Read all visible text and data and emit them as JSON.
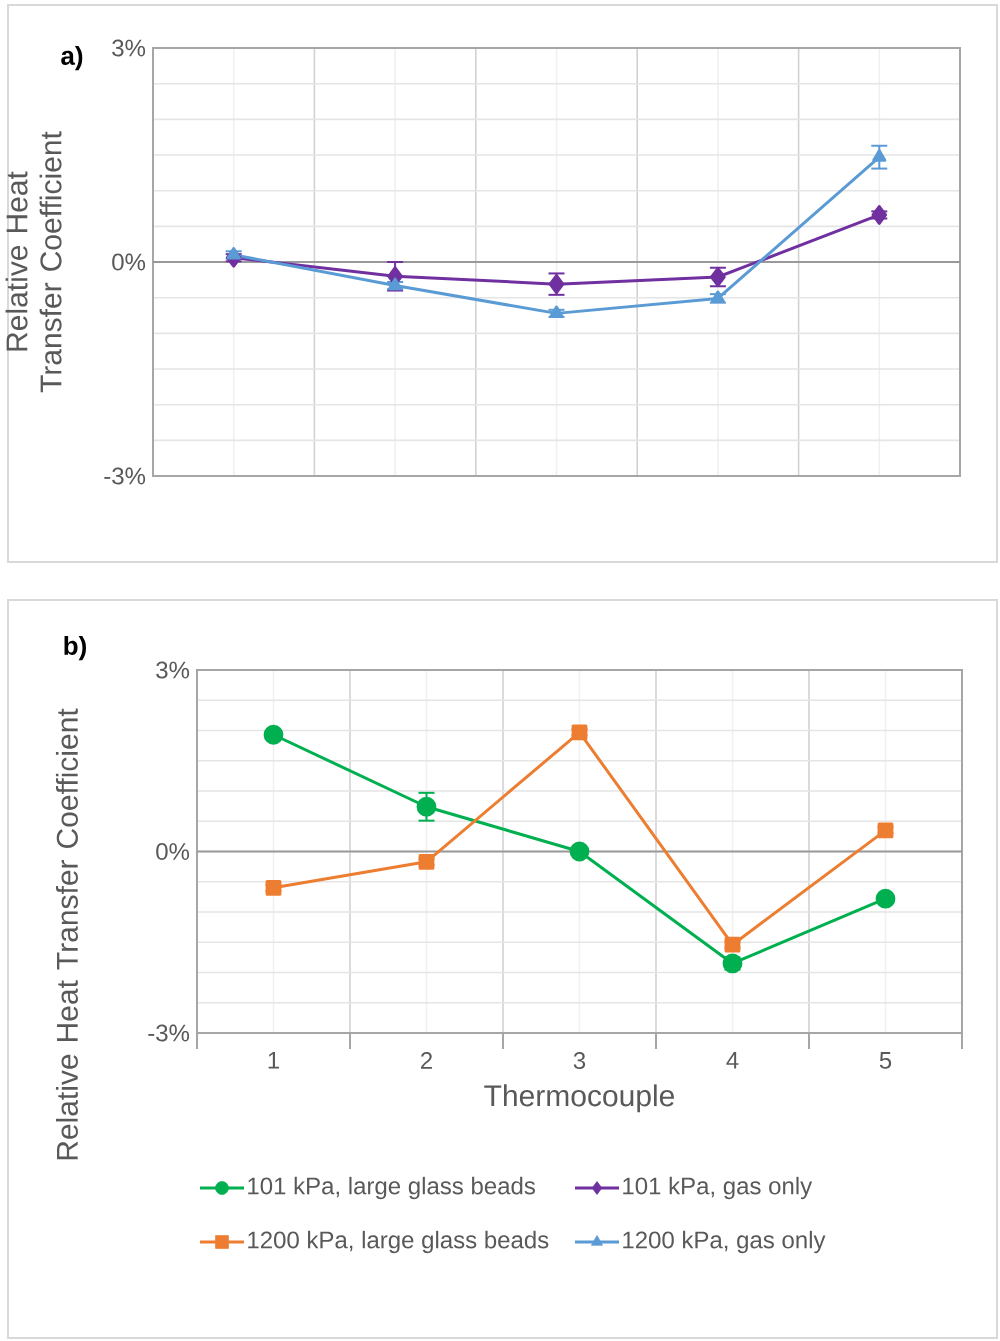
{
  "chart_data": [
    {
      "type": "line",
      "title": "a)",
      "ylabel": "Relative Heat Transfer Coefficient",
      "categories": [
        null,
        null,
        null,
        null,
        null
      ],
      "series": [
        {
          "name": "101 kPa, gas only",
          "color": "#7030a0",
          "marker": "diamond",
          "values": [
            0.06,
            -0.2,
            -0.31,
            -0.21,
            0.66
          ],
          "errors": [
            0.05,
            0.2,
            0.15,
            0.13,
            0.05
          ]
        },
        {
          "name": "1200 kPa, gas only",
          "color": "#5b9bd5",
          "marker": "triangle",
          "values": [
            0.1,
            -0.33,
            -0.72,
            -0.51,
            1.47
          ],
          "errors": [
            0.05,
            0.05,
            0.05,
            0.06,
            0.16
          ]
        }
      ],
      "ylim": [
        -3,
        3
      ],
      "yticks": [
        {
          "value": -3,
          "label": "-3%"
        },
        {
          "value": -2.5,
          "label": null
        },
        {
          "value": -2,
          "label": null
        },
        {
          "value": -1.5,
          "label": null
        },
        {
          "value": -1,
          "label": null
        },
        {
          "value": -0.5,
          "label": null
        },
        {
          "value": 0,
          "label": "0%"
        },
        {
          "value": 0.5,
          "label": null
        },
        {
          "value": 1,
          "label": null
        },
        {
          "value": 1.5,
          "label": null
        },
        {
          "value": 2,
          "label": null
        },
        {
          "value": 2.5,
          "label": null
        },
        {
          "value": 3,
          "label": "3%"
        }
      ],
      "tick_labels": "y",
      "grid": true,
      "legend": "bottom",
      "line_style": "solid"
    },
    {
      "type": "line",
      "title": "b)",
      "xlabel": "Thermocouple",
      "ylabel": "Relative Heat Transfer Coefficient",
      "categories": [
        "1",
        "2",
        "3",
        "4",
        "5"
      ],
      "series": [
        {
          "name": "101 kPa, large glass beads",
          "color": "#00b050",
          "marker": "circle",
          "values": [
            1.93,
            0.74,
            0,
            -1.85,
            -0.78
          ],
          "errors": [
            0.05,
            0.23,
            0.05,
            0.1,
            0.05
          ]
        },
        {
          "name": "1200 kPa, large glass beads",
          "color": "#ed7d31",
          "marker": "square",
          "values": [
            -0.6,
            -0.17,
            1.97,
            -1.54,
            0.35
          ],
          "errors": [
            0.05,
            0.05,
            0.05,
            0.05,
            0.05
          ]
        }
      ],
      "ylim": [
        -3,
        3
      ],
      "yticks": [
        {
          "value": -3,
          "label": "-3%"
        },
        {
          "value": -2.5,
          "label": null
        },
        {
          "value": -2,
          "label": null
        },
        {
          "value": -1.5,
          "label": null
        },
        {
          "value": -1,
          "label": null
        },
        {
          "value": -0.5,
          "label": null
        },
        {
          "value": 0,
          "label": "0%"
        },
        {
          "value": 0.5,
          "label": null
        },
        {
          "value": 1,
          "label": null
        },
        {
          "value": 1.5,
          "label": null
        },
        {
          "value": 2,
          "label": null
        },
        {
          "value": 2.5,
          "label": null
        },
        {
          "value": 3,
          "label": "3%"
        }
      ],
      "grid": true,
      "legend": "bottom",
      "line_style": "solid"
    }
  ]
}
